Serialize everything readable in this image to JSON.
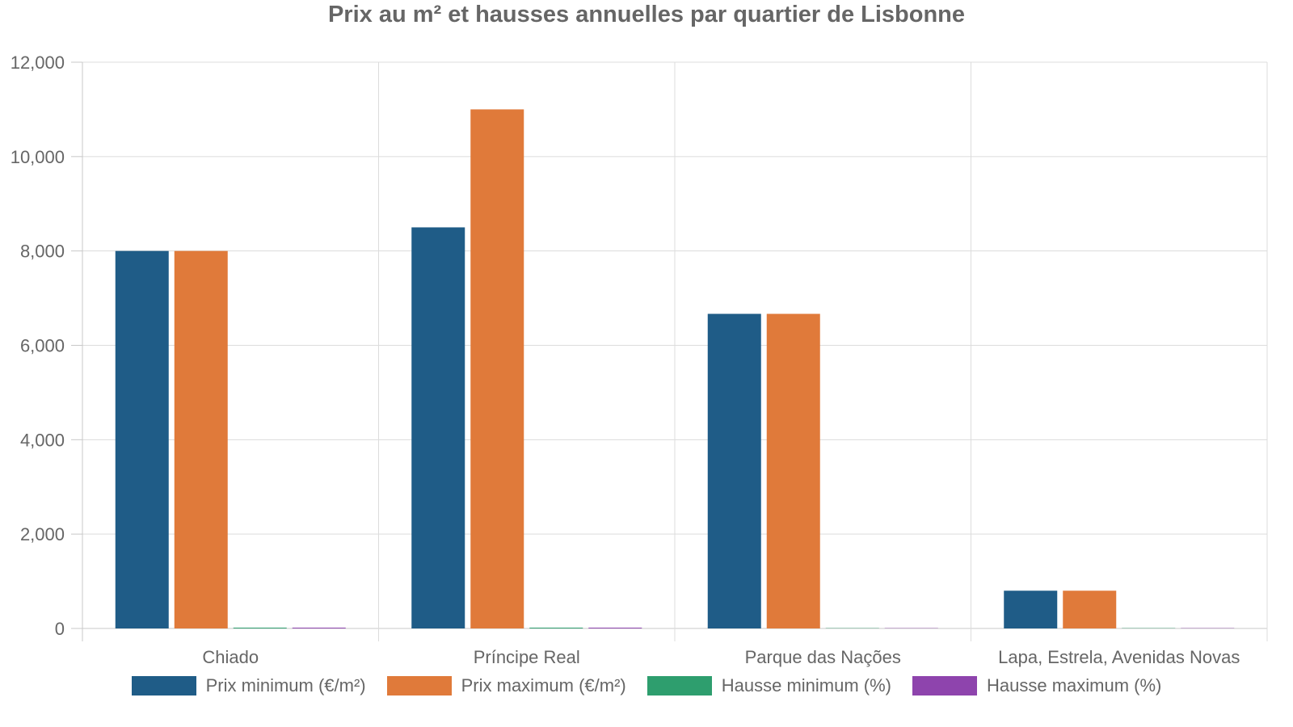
{
  "chart_data": {
    "type": "bar",
    "title": "Prix au m² et hausses annuelles par quartier de Lisbonne",
    "categories": [
      "Chiado",
      "Príncipe Real",
      "Parque das Nações",
      "Lapa, Estrela, Avenidas Novas"
    ],
    "series": [
      {
        "name": "Prix minimum (€/m²)",
        "color": "#1f5c87",
        "values": [
          8000,
          8500,
          6667,
          800
        ]
      },
      {
        "name": "Prix maximum (€/m²)",
        "color": "#e07a3a",
        "values": [
          8000,
          11000,
          6667,
          800
        ]
      },
      {
        "name": "Hausse minimum (%)",
        "color": "#2e9e6e",
        "values": [
          10,
          10,
          0,
          0
        ]
      },
      {
        "name": "Hausse maximum (%)",
        "color": "#8e44ad",
        "values": [
          10,
          10,
          0,
          0
        ]
      }
    ],
    "ylim": [
      0,
      12000
    ],
    "yticks": [
      0,
      2000,
      4000,
      6000,
      8000,
      10000,
      12000
    ],
    "ytick_labels": [
      "0",
      "2,000",
      "4,000",
      "6,000",
      "8,000",
      "10,000",
      "12,000"
    ],
    "grid": true,
    "legend_position": "bottom"
  }
}
